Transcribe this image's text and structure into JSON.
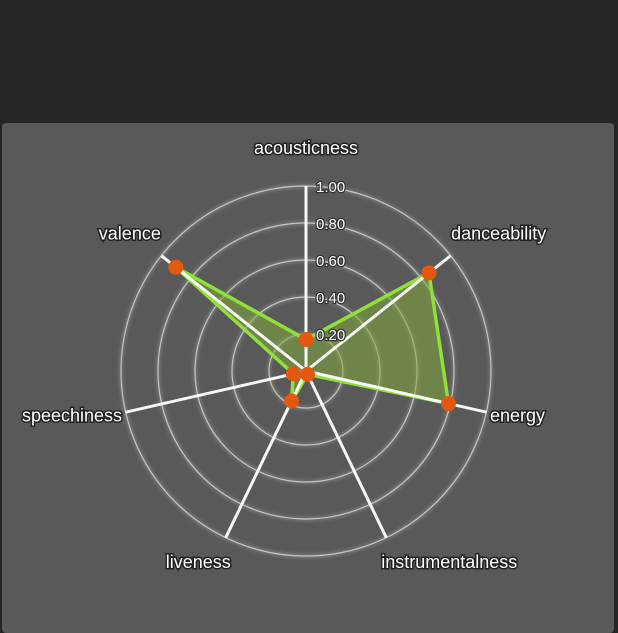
{
  "chart_data": {
    "type": "radar",
    "axes": [
      "acousticness",
      "danceability",
      "energy",
      "instrumentalness",
      "liveness",
      "speechiness",
      "valence"
    ],
    "ticks": [
      "0.20",
      "0.40",
      "0.60",
      "0.80",
      "1.00"
    ],
    "range": [
      0,
      1
    ],
    "series": [
      {
        "values": [
          0.17,
          0.85,
          0.79,
          0.02,
          0.18,
          0.07,
          0.9
        ]
      }
    ],
    "grid": true
  },
  "colors": {
    "page_background": "#262626",
    "panel_background": "#595959",
    "series_line": "#8fe03a",
    "series_fill": "#7fa83a",
    "point": "#e4590f",
    "axis": "#ffffff",
    "grid": "#d8d8d8"
  }
}
